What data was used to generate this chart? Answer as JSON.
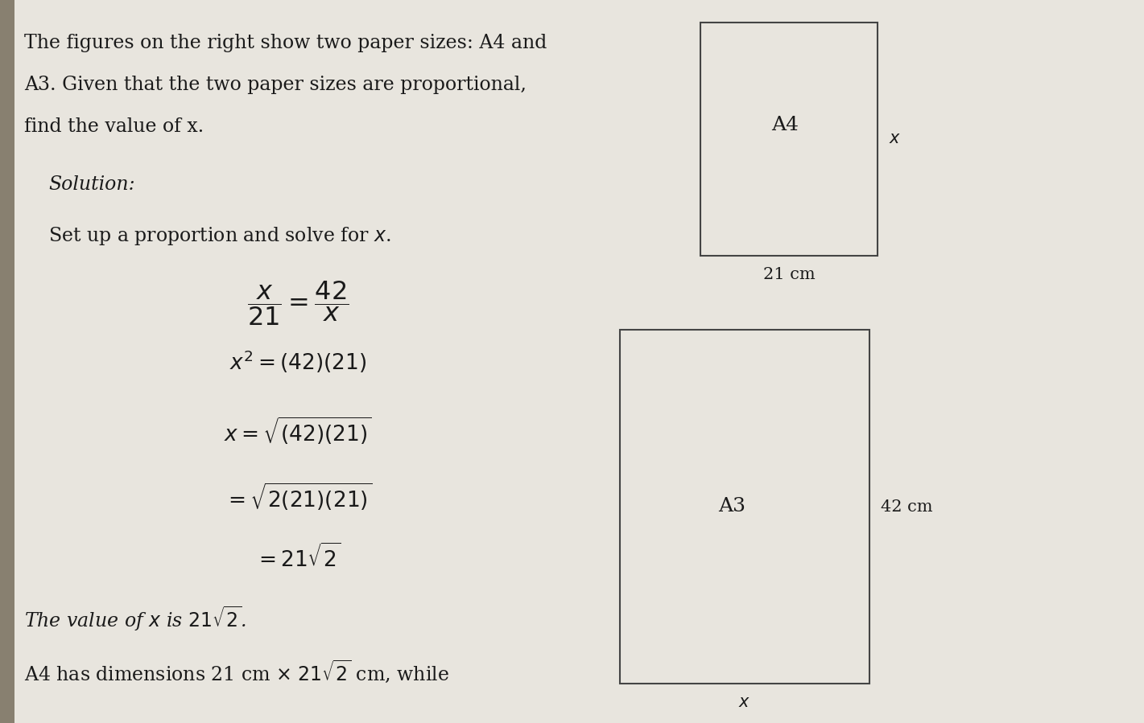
{
  "bg_color": "#c8c4b8",
  "page_color": "#e8e5de",
  "text_color": "#1a1a1a",
  "line1": "The figures on the right show two paper sizes: A4 and",
  "line2": "A3. Given that the two paper sizes are proportional,",
  "line3": "find the value of x.",
  "solution_label": "Solution:",
  "step_text": "Set up a proportion and solve for x.",
  "eq1": "$\\dfrac{x}{21} = \\dfrac{42}{x}$",
  "eq2": "$x^{2} = (42)(21)$",
  "eq3": "$x = \\sqrt{(42)(21)}$",
  "eq4": "$= \\sqrt{2(21)(21)}$",
  "eq5": "$= 21\\sqrt{2}$",
  "conclusion": "The value of x is $21\\sqrt{2}$.",
  "bottom": "A4 has dimensions 21 cm $\\times$ $21\\sqrt{2}$ cm, while",
  "a4_label": "A4",
  "a3_label": "A3",
  "a4_width_label": "21 cm",
  "a4_height_label": "x",
  "a3_height_label": "42 cm",
  "a3_width_label": "x",
  "prob_fs": 17,
  "sol_fs": 17,
  "eq_fs": 19,
  "label_fs": 16,
  "dim_fs": 15
}
